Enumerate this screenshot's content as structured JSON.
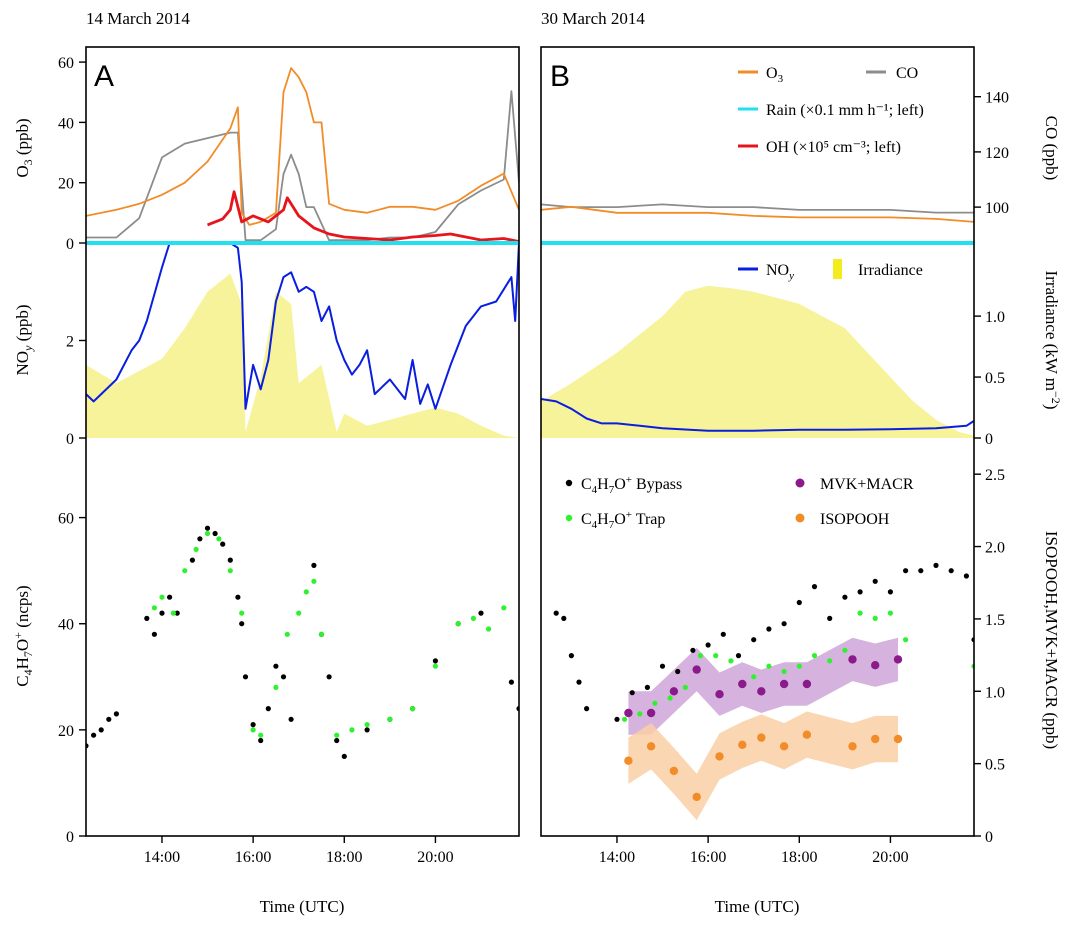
{
  "figure": {
    "panel_a": {
      "date": "14 March 2014",
      "letter": "A"
    },
    "panel_b": {
      "date": "30 March 2014",
      "letter": "B"
    },
    "xlabel": "Time (UTC)"
  },
  "colors": {
    "o3": "#f28c28",
    "co": "#8c8c8c",
    "rain": "#22e0f0",
    "oh": "#e8141c",
    "noy": "#0a1ee0",
    "irradiance": "#f7f39a",
    "irradiance_legend": "#f2ec1c",
    "bypass": "#000000",
    "trap": "#2ef22e",
    "mvk": "#8b1a8b",
    "mvk_band": "#cfa6d8",
    "isopooh": "#f28c28",
    "isopooh_band": "#f9cfa6"
  },
  "legend": {
    "o3": {
      "main": "O",
      "sub": "3"
    },
    "co": "CO",
    "rain": "Rain (×0.1 mm h⁻¹; left)",
    "oh": "OH (×10⁵ cm⁻³; left)",
    "noy": {
      "main": "NO",
      "sub": "y"
    },
    "irradiance": "Irradiance",
    "bypass": {
      "p1": "C",
      "s1": "4",
      "p2": "H",
      "s2": "7",
      "p3": "O",
      "sup": "+",
      "p4": " Bypass"
    },
    "trap": {
      "p1": "C",
      "s1": "4",
      "p2": "H",
      "s2": "7",
      "p3": "O",
      "sup": "+",
      "p4": " Trap"
    },
    "mvk": "MVK+MACR",
    "isopooh": "ISOPOOH"
  },
  "axis_labels": {
    "o3_left": {
      "main": "O",
      "sub": "3",
      "rest": " (ppb)"
    },
    "noy_left": {
      "main": "NO",
      "sub": "y",
      "rest": " (ppb)"
    },
    "c4_left": {
      "p1": "C",
      "s1": "4",
      "p2": "H",
      "s2": "7",
      "p3": "O",
      "sup": "+",
      "rest": " (ncps)"
    },
    "co_right": "CO (ppb)",
    "irr_right": {
      "main": "Irradiance (kW m",
      "sup": "−2",
      "rest": ")"
    },
    "isop_right": "ISOPOOH,MVK+MACR (ppb)"
  },
  "chart_data": [
    {
      "type": "line",
      "panel": "A",
      "subplot": "top",
      "ylabel": "O3 (ppb)",
      "ylim": [
        0,
        65
      ],
      "yticks": [
        0,
        20,
        40,
        60
      ],
      "xlim": [
        "12:20",
        "21:50"
      ],
      "xticks": [
        "14:00",
        "16:00",
        "18:00",
        "20:00"
      ],
      "series": [
        {
          "name": "O3",
          "x": [
            "12:20",
            "13:00",
            "13:30",
            "14:00",
            "14:30",
            "15:00",
            "15:30",
            "15:40",
            "15:45",
            "15:55",
            "16:10",
            "16:30",
            "16:40",
            "16:50",
            "17:00",
            "17:10",
            "17:20",
            "17:30",
            "17:40",
            "18:00",
            "18:30",
            "19:00",
            "19:30",
            "20:00",
            "20:30",
            "21:00",
            "21:30",
            "21:50"
          ],
          "y": [
            9,
            11,
            13,
            16,
            20,
            27,
            38,
            45,
            10,
            6,
            7,
            10,
            50,
            58,
            55,
            50,
            40,
            40,
            13,
            11,
            10,
            12,
            12,
            11,
            14,
            19,
            23,
            11
          ]
        },
        {
          "name": "CO",
          "x": [
            "12:20",
            "13:00",
            "13:30",
            "14:00",
            "14:30",
            "15:00",
            "15:30",
            "15:40",
            "15:50",
            "16:10",
            "16:30",
            "16:40",
            "16:50",
            "17:00",
            "17:10",
            "17:20",
            "17:40",
            "18:00",
            "18:30",
            "19:00",
            "19:30",
            "20:00",
            "20:30",
            "21:00",
            "21:30",
            "21:40",
            "21:50"
          ],
          "y": [
            89,
            89,
            96,
            118,
            123,
            125,
            127,
            127,
            88,
            88,
            92,
            112,
            119,
            112,
            100,
            100,
            88,
            88,
            88,
            89,
            89,
            91,
            101,
            106,
            110,
            142,
            109
          ]
        },
        {
          "name": "OH (x10^5 cm-3; left)",
          "x": [
            "15:00",
            "15:20",
            "15:30",
            "15:35",
            "15:45",
            "16:00",
            "16:20",
            "16:40",
            "16:45",
            "17:00",
            "17:20",
            "17:40",
            "18:00",
            "18:30",
            "19:00",
            "19:30",
            "20:00",
            "20:20",
            "21:00",
            "21:30",
            "21:50"
          ],
          "y": [
            6,
            8,
            11,
            17,
            7,
            9,
            7,
            11,
            15,
            9,
            5,
            3,
            2,
            1.5,
            1,
            2,
            2.5,
            3,
            1,
            1.5,
            0.5
          ]
        },
        {
          "name": "Rain (x0.1 mm h-1; left)",
          "x": [
            "12:20",
            "21:50"
          ],
          "y": [
            0,
            0
          ]
        }
      ]
    },
    {
      "type": "line",
      "panel": "A",
      "subplot": "middle",
      "ylabel": "NOy (ppb)",
      "ylim": [
        0,
        4
      ],
      "yticks": [
        0,
        2
      ],
      "series": [
        {
          "name": "NOy",
          "x": [
            "12:20",
            "12:30",
            "12:40",
            "13:00",
            "13:20",
            "13:30",
            "13:40",
            "14:00",
            "14:10",
            "15:30",
            "15:40",
            "15:45",
            "15:50",
            "16:00",
            "16:10",
            "16:20",
            "16:30",
            "16:40",
            "16:50",
            "17:00",
            "17:10",
            "17:20",
            "17:30",
            "17:40",
            "17:50",
            "18:00",
            "18:10",
            "18:20",
            "18:30",
            "18:40",
            "19:00",
            "19:20",
            "19:30",
            "19:40",
            "19:50",
            "20:00",
            "20:20",
            "20:40",
            "21:00",
            "21:20",
            "21:40",
            "21:45",
            "21:50"
          ],
          "y": [
            0.9,
            0.75,
            0.9,
            1.2,
            1.8,
            2.0,
            2.4,
            3.5,
            4.0,
            4.0,
            3.9,
            3.2,
            0.6,
            1.5,
            1.0,
            1.6,
            2.8,
            3.3,
            3.4,
            3.0,
            3.1,
            3.0,
            2.4,
            2.7,
            2.0,
            1.6,
            1.3,
            1.5,
            1.8,
            0.9,
            1.2,
            0.8,
            1.6,
            0.7,
            1.1,
            0.6,
            1.5,
            2.3,
            2.7,
            2.8,
            3.3,
            2.4,
            4.0
          ]
        },
        {
          "name": "Irradiance (kW m-2, right)",
          "x": [
            "12:20",
            "13:00",
            "13:30",
            "14:00",
            "14:30",
            "15:00",
            "15:30",
            "15:45",
            "15:50",
            "16:10",
            "16:30",
            "16:50",
            "17:00",
            "17:30",
            "17:50",
            "18:00",
            "18:30",
            "19:00",
            "19:30",
            "20:00",
            "20:30",
            "21:00",
            "21:30",
            "21:50"
          ],
          "y": [
            0.6,
            0.45,
            0.55,
            0.65,
            0.9,
            1.2,
            1.35,
            1.1,
            0.05,
            0.5,
            1.2,
            1.1,
            0.45,
            0.6,
            0.05,
            0.2,
            0.1,
            0.15,
            0.2,
            0.25,
            0.2,
            0.1,
            0.02,
            0
          ]
        }
      ]
    },
    {
      "type": "scatter",
      "panel": "A",
      "subplot": "bottom",
      "ylabel": "C4H7O+ (ncps)",
      "ylim": [
        0,
        75
      ],
      "yticks": [
        0,
        20,
        40,
        60
      ],
      "series": [
        {
          "name": "C4H7O+ Bypass",
          "x": [
            "12:20",
            "12:30",
            "12:40",
            "12:50",
            "13:00",
            "13:40",
            "13:50",
            "14:00",
            "14:10",
            "14:20",
            "14:40",
            "14:50",
            "15:00",
            "15:10",
            "15:20",
            "15:30",
            "15:40",
            "15:45",
            "15:50",
            "16:00",
            "16:10",
            "16:20",
            "16:30",
            "16:40",
            "16:50",
            "17:20",
            "17:30",
            "17:40",
            "17:50",
            "18:00",
            "18:30",
            "19:00",
            "19:30",
            "20:00",
            "20:30",
            "21:00",
            "21:40",
            "21:50"
          ],
          "y": [
            17,
            19,
            20,
            22,
            23,
            41,
            38,
            42,
            45,
            42,
            52,
            56,
            58,
            57,
            55,
            52,
            45,
            40,
            30,
            21,
            18,
            24,
            32,
            30,
            22,
            51,
            38,
            30,
            18,
            15,
            20,
            22,
            24,
            33,
            40,
            42,
            29,
            24
          ]
        },
        {
          "name": "C4H7O+ Trap",
          "x": [
            "13:50",
            "14:00",
            "14:15",
            "14:30",
            "14:45",
            "15:00",
            "15:15",
            "15:30",
            "15:45",
            "16:00",
            "16:10",
            "16:30",
            "16:45",
            "17:00",
            "17:10",
            "17:20",
            "17:30",
            "17:50",
            "18:10",
            "18:30",
            "19:00",
            "19:30",
            "20:00",
            "20:30",
            "20:50",
            "21:10",
            "21:30"
          ],
          "y": [
            43,
            45,
            42,
            50,
            54,
            57,
            56,
            50,
            42,
            20,
            19,
            28,
            38,
            42,
            46,
            48,
            38,
            19,
            20,
            21,
            22,
            24,
            32,
            40,
            41,
            39,
            43
          ]
        }
      ]
    },
    {
      "type": "line",
      "panel": "B",
      "subplot": "top",
      "ylabel": "CO (ppb)",
      "y2lim": [
        87,
        158
      ],
      "yticks": [
        100,
        120,
        140
      ],
      "xlim": [
        "12:20",
        "21:50"
      ],
      "xticks": [
        "14:00",
        "16:00",
        "18:00",
        "20:00"
      ],
      "series": [
        {
          "name": "O3",
          "x": [
            "12:20",
            "13:00",
            "14:00",
            "15:00",
            "16:00",
            "17:00",
            "18:00",
            "19:00",
            "20:00",
            "21:00",
            "21:50"
          ],
          "y": [
            11,
            12,
            10,
            10,
            10,
            9,
            8.5,
            8.5,
            8.5,
            8,
            7
          ]
        },
        {
          "name": "CO",
          "x": [
            "12:20",
            "13:00",
            "14:00",
            "15:00",
            "16:00",
            "17:00",
            "18:00",
            "19:00",
            "20:00",
            "21:00",
            "21:50"
          ],
          "y": [
            101,
            100,
            100,
            101,
            100,
            100,
            99,
            99,
            99,
            98,
            98
          ]
        },
        {
          "name": "Rain (x0.1 mm h-1; left)",
          "x": [
            "12:20",
            "21:50"
          ],
          "y": [
            0,
            0
          ]
        }
      ]
    },
    {
      "type": "line",
      "panel": "B",
      "subplot": "middle",
      "ylabel": "Irradiance (kW m-2)",
      "y2lim": [
        0,
        1.6
      ],
      "yticks": [
        0,
        0.5,
        1.0
      ],
      "series": [
        {
          "name": "NOy",
          "x": [
            "12:20",
            "12:40",
            "13:00",
            "13:20",
            "13:40",
            "14:00",
            "14:30",
            "15:00",
            "16:00",
            "17:00",
            "18:00",
            "19:00",
            "20:00",
            "21:00",
            "21:40",
            "21:50"
          ],
          "y": [
            0.8,
            0.75,
            0.6,
            0.4,
            0.3,
            0.3,
            0.25,
            0.2,
            0.15,
            0.15,
            0.17,
            0.17,
            0.18,
            0.2,
            0.25,
            0.35
          ]
        },
        {
          "name": "Irradiance",
          "x": [
            "12:20",
            "13:00",
            "14:00",
            "15:00",
            "15:30",
            "16:00",
            "16:30",
            "17:00",
            "17:30",
            "18:00",
            "18:30",
            "19:00",
            "19:30",
            "20:00",
            "20:30",
            "21:00",
            "21:30",
            "21:50"
          ],
          "y": [
            0.3,
            0.45,
            0.7,
            1.0,
            1.2,
            1.25,
            1.23,
            1.2,
            1.15,
            1.1,
            1.0,
            0.9,
            0.7,
            0.5,
            0.3,
            0.15,
            0.05,
            0.02
          ]
        }
      ]
    },
    {
      "type": "scatter",
      "panel": "B",
      "subplot": "bottom",
      "ylabel": "ISOPOOH,MVK+MACR (ppb)",
      "y2lim": [
        0,
        2.75
      ],
      "yticks": [
        0,
        0.5,
        1.0,
        1.5,
        2.0,
        2.5
      ],
      "series": [
        {
          "name": "C4H7O+ Bypass",
          "x": [
            "12:40",
            "12:50",
            "13:00",
            "13:10",
            "13:20",
            "14:00",
            "14:20",
            "14:40",
            "15:00",
            "15:20",
            "15:40",
            "16:00",
            "16:20",
            "16:40",
            "17:00",
            "17:20",
            "17:40",
            "18:00",
            "18:20",
            "18:40",
            "19:00",
            "19:20",
            "19:40",
            "20:00",
            "20:20",
            "20:40",
            "21:00",
            "21:20",
            "21:40",
            "21:50"
          ],
          "y": [
            42,
            41,
            34,
            29,
            24,
            22,
            27,
            28,
            32,
            31,
            35,
            36,
            38,
            34,
            37,
            39,
            40,
            44,
            47,
            41,
            45,
            46,
            48,
            46,
            50,
            50,
            51,
            50,
            49,
            37
          ]
        },
        {
          "name": "C4H7O+ Trap",
          "x": [
            "14:10",
            "14:30",
            "14:50",
            "15:10",
            "15:30",
            "15:50",
            "16:10",
            "16:30",
            "17:00",
            "17:20",
            "17:40",
            "18:00",
            "18:20",
            "18:40",
            "19:00",
            "19:20",
            "19:40",
            "20:00",
            "20:20",
            "21:50"
          ],
          "y": [
            22,
            23,
            25,
            26,
            28,
            34,
            34,
            33,
            30,
            32,
            31,
            32,
            34,
            33,
            35,
            42,
            41,
            42,
            37,
            32
          ]
        },
        {
          "name": "MVK+MACR",
          "x": [
            "14:15",
            "14:45",
            "15:15",
            "15:45",
            "16:15",
            "16:45",
            "17:10",
            "17:40",
            "18:10",
            "19:10",
            "19:40",
            "20:10"
          ],
          "y": [
            0.85,
            0.85,
            1.0,
            1.15,
            0.98,
            1.05,
            1.0,
            1.05,
            1.05,
            1.22,
            1.18,
            1.22
          ]
        },
        {
          "name": "ISOPOOH",
          "x": [
            "14:15",
            "14:45",
            "15:15",
            "15:45",
            "16:15",
            "16:45",
            "17:10",
            "17:40",
            "18:10",
            "19:10",
            "19:40",
            "20:10"
          ],
          "y": [
            0.52,
            0.62,
            0.45,
            0.27,
            0.55,
            0.63,
            0.68,
            0.62,
            0.7,
            0.62,
            0.67,
            0.67
          ]
        }
      ]
    }
  ]
}
